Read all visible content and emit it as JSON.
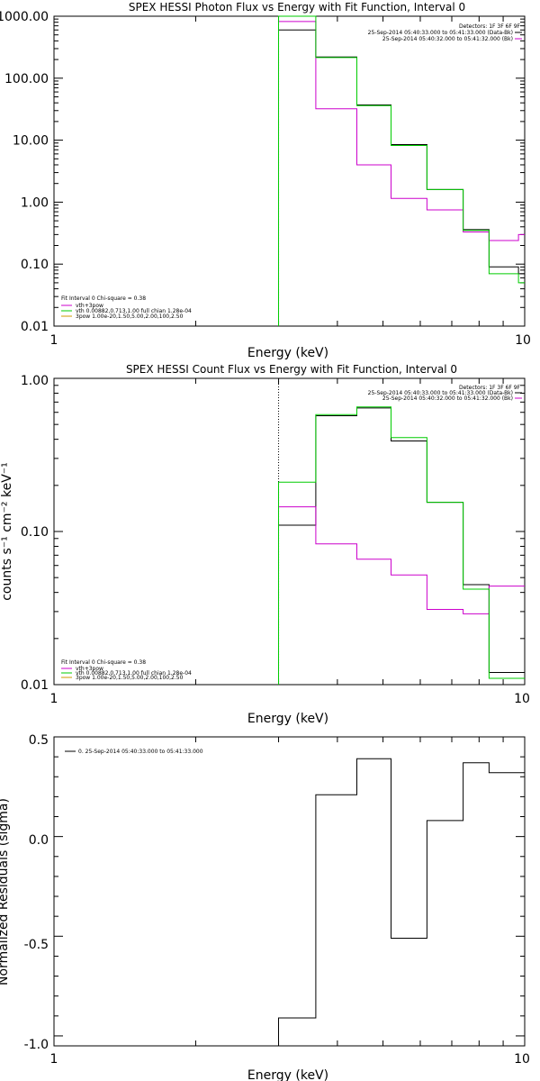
{
  "chart_data": [
    {
      "type": "line",
      "title": "SPEX HESSI Photon Flux vs Energy with Fit Function, Interval 0",
      "xlabel": "Energy (keV)",
      "ylabel": "",
      "xscale": "log",
      "yscale": "log",
      "xlim": [
        1,
        10
      ],
      "ylim": [
        0.01,
        1000
      ],
      "xticks": [
        "1",
        "10"
      ],
      "yticks": [
        "0.01",
        "0.10",
        "1.00",
        "10.00",
        "100.00",
        "1000.00"
      ],
      "ytick_values": [
        0.01,
        0.1,
        1,
        10,
        100,
        1000
      ],
      "vline_x": 3.0,
      "vline_color": "#00cc00",
      "header_lines": [
        "Detectors: 1F 3F 6F 9F",
        "25-Sep-2014 05:40:33.000 to 05:41:33.000 (Data-Bk)",
        "25-Sep-2014 05:40:32.000 to 05:41:32.000 (Bk)"
      ],
      "legend_lines": [
        "Fit Interval 0   Chi-square = 0.38",
        "vth+3pow",
        "vth 0.00882,0.713,1.00  full chian 1.28e-04",
        "3pow 1.00e-20,1.50,5.00,2.00,100,2.50"
      ],
      "legend_colors": [
        "#000000",
        "#cc00cc",
        "#00cc00",
        "#cc9900"
      ],
      "series": [
        {
          "color": "#000000",
          "edges": [
            3.0,
            3.6,
            4.4,
            5.2,
            6.2,
            7.4,
            8.4,
            9.7,
            10
          ],
          "values": [
            600,
            220,
            37,
            8.5,
            1.6,
            0.36,
            0.09,
            0.07
          ]
        },
        {
          "color": "#cc00cc",
          "edges": [
            3.0,
            3.6,
            4.4,
            5.2,
            6.2,
            7.4,
            8.4,
            9.7,
            10
          ],
          "values": [
            820,
            32,
            4.0,
            1.15,
            0.75,
            0.33,
            0.24,
            0.3
          ]
        },
        {
          "color": "#00cc00",
          "edges": [
            3.0,
            3.6,
            4.4,
            5.2,
            6.2,
            7.4,
            8.4,
            9.7,
            10
          ],
          "values": [
            1000,
            215,
            36,
            8.2,
            1.6,
            0.35,
            0.07,
            0.05
          ]
        }
      ]
    },
    {
      "type": "line",
      "title": "SPEX HESSI Count Flux vs Energy with Fit Function, Interval 0",
      "xlabel": "Energy (keV)",
      "ylabel": "counts s⁻¹ cm⁻² keV⁻¹",
      "xscale": "log",
      "yscale": "log",
      "xlim": [
        1,
        10
      ],
      "ylim": [
        0.01,
        1.0
      ],
      "xticks": [
        "1",
        "10"
      ],
      "yticks": [
        "0.01",
        "0.10",
        "1.00"
      ],
      "ytick_values": [
        0.01,
        0.1,
        1.0
      ],
      "vline_x": 3.0,
      "vline_color": "#000000",
      "header_lines": [
        "Detectors: 1F 3F 6F 9F",
        "25-Sep-2014 05:40:33.000 to 05:41:33.000 (Data-Bk)",
        "25-Sep-2014 05:40:32.000 to 05:41:32.000 (Bk)"
      ],
      "legend_lines": [
        "Fit Interval 0   Chi-square = 0.38",
        "vth+3pow",
        "vth 0.00882,0.713,1.00  full chian 1.28e-04",
        "3pow 1.00e-20,1.50,5.00,2.00,100,2.50"
      ],
      "legend_colors": [
        "#000000",
        "#cc00cc",
        "#00cc00",
        "#cc9900"
      ],
      "series": [
        {
          "color": "#000000",
          "edges": [
            3.0,
            3.6,
            4.4,
            5.2,
            6.2,
            7.4,
            8.4,
            9.7,
            10
          ],
          "values": [
            0.11,
            0.57,
            0.64,
            0.39,
            0.155,
            0.045,
            0.012,
            0.012
          ]
        },
        {
          "color": "#cc00cc",
          "edges": [
            3.0,
            3.6,
            4.4,
            5.2,
            6.2,
            7.4,
            8.4,
            9.7,
            10
          ],
          "values": [
            0.145,
            0.083,
            0.066,
            0.052,
            0.031,
            0.029,
            0.044,
            0.044
          ]
        },
        {
          "color": "#00cc00",
          "edges": [
            3.0,
            3.6,
            4.4,
            5.2,
            6.2,
            7.4,
            8.4,
            9.7,
            10
          ],
          "values": [
            0.21,
            0.58,
            0.65,
            0.41,
            0.155,
            0.042,
            0.011,
            0.011
          ]
        }
      ]
    },
    {
      "type": "line",
      "title": "",
      "xlabel": "Energy (keV)",
      "ylabel": "Normalized Residuals (sigma)",
      "xscale": "log",
      "yscale": "linear",
      "xlim": [
        1,
        10
      ],
      "ylim": [
        -1.05,
        0.5
      ],
      "xticks": [
        "1",
        "10"
      ],
      "yticks": [
        "-1.0",
        "-0.5",
        "0.0",
        "0.5"
      ],
      "ytick_values": [
        -1.0,
        -0.5,
        0.0,
        0.5
      ],
      "legend_lines": [
        "0. 25-Sep-2014 05:40:33.000 to 05:41:33.000"
      ],
      "series": [
        {
          "color": "#000000",
          "edges": [
            3.0,
            3.6,
            4.4,
            5.2,
            6.2,
            7.4,
            8.4,
            9.7,
            10
          ],
          "values": [
            -0.91,
            0.21,
            0.39,
            -0.51,
            0.08,
            0.37,
            0.32,
            0.32
          ]
        }
      ]
    }
  ]
}
